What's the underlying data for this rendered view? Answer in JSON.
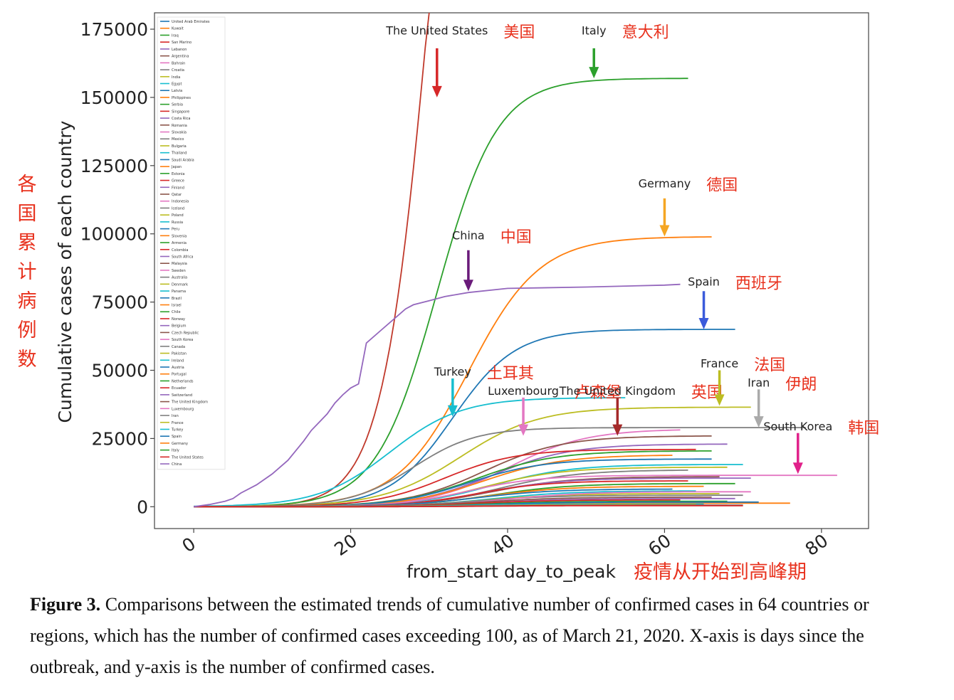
{
  "chart_data": {
    "type": "line",
    "title": "",
    "xlabel": "from_start day_to_peak",
    "xlabel_zh": "疫情从开始到高峰期",
    "ylabel": "Cumulative cases of each country",
    "ylabel_zh": "各国累计病例数",
    "xlim": [
      -5,
      86
    ],
    "ylim": [
      -8000,
      181000
    ],
    "x_ticks": [
      0,
      20,
      40,
      60,
      80
    ],
    "y_ticks": [
      0,
      25000,
      50000,
      75000,
      100000,
      125000,
      150000,
      175000
    ],
    "y_tick_labels": [
      "0",
      "25000",
      "50000",
      "75000",
      "100000",
      "125000",
      "150000",
      "175000"
    ],
    "legend_position": "top-left",
    "legend": [
      "United Arab Emirates",
      "Kuwait",
      "Iraq",
      "San Marino",
      "Lebanon",
      "Argentina",
      "Bahrain",
      "Croatia",
      "India",
      "Egypt",
      "Latvia",
      "Philippines",
      "Serbia",
      "Singapore",
      "Costa Rica",
      "Romania",
      "Slovakia",
      "Mexico",
      "Bulgaria",
      "Thailand",
      "Saudi Arabia",
      "Japan",
      "Estonia",
      "Greece",
      "Finland",
      "Qatar",
      "Indonesia",
      "Iceland",
      "Poland",
      "Russia",
      "Peru",
      "Slovenia",
      "Armenia",
      "Colombia",
      "South Africa",
      "Malaysia",
      "Sweden",
      "Australia",
      "Denmark",
      "Panama",
      "Brazil",
      "Israel",
      "Chile",
      "Norway",
      "Belgium",
      "Czech Republic",
      "South Korea",
      "Canada",
      "Pakistan",
      "Ireland",
      "Austria",
      "Portugal",
      "Netherlands",
      "Ecuador",
      "Switzerland",
      "The United Kingdom",
      "Luxembourg",
      "Iran",
      "France",
      "Turkey",
      "Spain",
      "Germany",
      "Italy",
      "The United States",
      "China"
    ],
    "color_cycle": [
      "#1f77b4",
      "#ff7f0e",
      "#2ca02c",
      "#d62728",
      "#9467bd",
      "#8c564b",
      "#e377c2",
      "#7f7f7f",
      "#bcbd22",
      "#17becf"
    ],
    "series": [
      {
        "name": "The United States",
        "color": "#c0392b",
        "type": "logistic",
        "L": 400000,
        "mid": 30.5,
        "k": 0.32,
        "x_end": 31
      },
      {
        "name": "Italy",
        "color": "#2ca02c",
        "type": "logistic",
        "L": 157000,
        "mid": 31,
        "k": 0.26,
        "x_end": 63
      },
      {
        "name": "Germany",
        "color": "#ff7f0e",
        "type": "logistic",
        "L": 99000,
        "mid": 35,
        "k": 0.22,
        "x_end": 66
      },
      {
        "name": "Spain",
        "color": "#1f77b4",
        "type": "logistic",
        "L": 65000,
        "mid": 33,
        "k": 0.25,
        "x_end": 69
      },
      {
        "name": "Turkey",
        "color": "#17becf",
        "type": "logistic",
        "L": 40000,
        "mid": 25,
        "k": 0.22,
        "x_end": 55
      },
      {
        "name": "Luxembourg",
        "color": "#bcbd22",
        "type": "logistic",
        "L": 36500,
        "mid": 34,
        "k": 0.2,
        "x_end": 71
      },
      {
        "name": "Iran",
        "color": "#7f7f7f",
        "type": "logistic",
        "L": 29000,
        "mid": 28,
        "k": 0.25,
        "x_end": 78
      },
      {
        "name": "The United Kingdom",
        "color": "#e377c2",
        "type": "logistic",
        "L": 28500,
        "mid": 40,
        "k": 0.2,
        "x_end": 62
      },
      {
        "name": "France",
        "color": "#8c564b",
        "type": "logistic",
        "L": 26000,
        "mid": 37,
        "k": 0.2,
        "x_end": 66
      },
      {
        "name": "Switzerland",
        "color": "#9467bd",
        "type": "logistic",
        "L": 23000,
        "mid": 38,
        "k": 0.2,
        "x_end": 68
      },
      {
        "name": "Ecuador",
        "color": "#d62728",
        "type": "logistic",
        "L": 21000,
        "mid": 32,
        "k": 0.22,
        "x_end": 64
      },
      {
        "name": "Netherlands",
        "color": "#2ca02c",
        "type": "logistic",
        "L": 20500,
        "mid": 36,
        "k": 0.2,
        "x_end": 66
      },
      {
        "name": "Portugal",
        "color": "#ff7f0e",
        "type": "logistic",
        "L": 19000,
        "mid": 37,
        "k": 0.2,
        "x_end": 61
      },
      {
        "name": "Austria",
        "color": "#1f77b4",
        "type": "logistic",
        "L": 17500,
        "mid": 35,
        "k": 0.21,
        "x_end": 66
      },
      {
        "name": "Ireland",
        "color": "#17becf",
        "type": "logistic",
        "L": 15500,
        "mid": 38,
        "k": 0.2,
        "x_end": 70
      },
      {
        "name": "Pakistan",
        "color": "#bcbd22",
        "type": "logistic",
        "L": 14500,
        "mid": 37,
        "k": 0.2,
        "x_end": 68
      },
      {
        "name": "Canada",
        "color": "#7f7f7f",
        "type": "logistic",
        "L": 13500,
        "mid": 39,
        "k": 0.2,
        "x_end": 63
      },
      {
        "name": "South Korea",
        "color": "#e377c2",
        "type": "logistic",
        "L": 11500,
        "mid": 35,
        "k": 0.22,
        "x_end": 82
      },
      {
        "name": "Czech Republic",
        "color": "#8c564b",
        "type": "logistic",
        "L": 11000,
        "mid": 38,
        "k": 0.2,
        "x_end": 67
      },
      {
        "name": "Belgium",
        "color": "#9467bd",
        "type": "logistic",
        "L": 10500,
        "mid": 37,
        "k": 0.2,
        "x_end": 71
      },
      {
        "name": "Norway",
        "color": "#d62728",
        "type": "logistic",
        "L": 9500,
        "mid": 36,
        "k": 0.22,
        "x_end": 63
      },
      {
        "name": "Chile",
        "color": "#2ca02c",
        "type": "logistic",
        "L": 8500,
        "mid": 38,
        "k": 0.2,
        "x_end": 69
      },
      {
        "name": "Israel",
        "color": "#ff7f0e",
        "type": "logistic",
        "L": 7500,
        "mid": 37,
        "k": 0.2,
        "x_end": 65
      },
      {
        "name": "Brazil",
        "color": "#1f77b4",
        "type": "logistic",
        "L": 6500,
        "mid": 36,
        "k": 0.2,
        "x_end": 61
      },
      {
        "name": "Panama",
        "color": "#17becf",
        "type": "logistic",
        "L": 5800,
        "mid": 38,
        "k": 0.2,
        "x_end": 64
      },
      {
        "name": "Denmark",
        "color": "#bcbd22",
        "type": "logistic",
        "L": 4800,
        "mid": 37,
        "k": 0.2,
        "x_end": 67
      },
      {
        "name": "Australia",
        "color": "#7f7f7f",
        "type": "logistic",
        "L": 4200,
        "mid": 36,
        "k": 0.2,
        "x_end": 70
      },
      {
        "name": "Sweden",
        "color": "#e377c2",
        "type": "logistic",
        "L": 5500,
        "mid": 40,
        "k": 0.2,
        "x_end": 71
      },
      {
        "name": "Malaysia",
        "color": "#8c564b",
        "type": "logistic",
        "L": 3500,
        "mid": 37,
        "k": 0.2,
        "x_end": 66
      },
      {
        "name": "South Africa",
        "color": "#9467bd",
        "type": "logistic",
        "L": 3000,
        "mid": 38,
        "k": 0.2,
        "x_end": 69
      },
      {
        "name": "Colombia",
        "color": "#d62728",
        "type": "logistic",
        "L": 2500,
        "mid": 36,
        "k": 0.2,
        "x_end": 62
      },
      {
        "name": "Armenia",
        "color": "#2ca02c",
        "type": "logistic",
        "L": 2000,
        "mid": 37,
        "k": 0.2,
        "x_end": 68
      },
      {
        "name": "Slovenia",
        "color": "#ff7f0e",
        "type": "logistic",
        "L": 1300,
        "mid": 35,
        "k": 0.2,
        "x_end": 76
      },
      {
        "name": "Peru",
        "color": "#1f77b4",
        "type": "logistic",
        "L": 1700,
        "mid": 38,
        "k": 0.2,
        "x_end": 72
      },
      {
        "name": "Russia",
        "color": "#17becf",
        "type": "logistic",
        "L": 1000,
        "mid": 36,
        "k": 0.2,
        "x_end": 65
      },
      {
        "name": "Poland",
        "color": "#bcbd22",
        "type": "logistic",
        "L": 800,
        "mid": 37,
        "k": 0.2,
        "x_end": 64
      },
      {
        "name": "Iceland",
        "color": "#7f7f7f",
        "type": "logistic",
        "L": 600,
        "mid": 36,
        "k": 0.2,
        "x_end": 70
      },
      {
        "name": "Qatar",
        "color": "#8c564b",
        "type": "logistic",
        "L": 500,
        "mid": 38,
        "k": 0.2,
        "x_end": 68
      },
      {
        "name": "Finland",
        "color": "#d62728",
        "type": "logistic",
        "L": 400,
        "mid": 37,
        "k": 0.2,
        "x_end": 70
      },
      {
        "name": "China",
        "color": "#9467bd",
        "type": "points",
        "x": [
          0,
          2,
          4,
          5,
          6,
          8,
          10,
          12,
          14,
          15,
          16,
          17,
          18,
          19,
          20,
          21,
          22,
          24,
          26,
          27,
          28,
          30,
          32,
          35,
          40,
          50,
          60,
          62
        ],
        "y": [
          0,
          800,
          2000,
          3000,
          5000,
          8000,
          12000,
          17000,
          24000,
          28000,
          31000,
          34000,
          38000,
          41000,
          43500,
          45000,
          60000,
          65000,
          70000,
          72500,
          74000,
          75500,
          77000,
          78500,
          80000,
          80500,
          81200,
          81500
        ]
      }
    ],
    "annotations": [
      {
        "label": "The United States",
        "label_zh": "美国",
        "arrow_color": "#d62728",
        "x": 31,
        "y_from": 168000,
        "y_to": 150000,
        "label_y": 173000
      },
      {
        "label": "Italy",
        "label_zh": "意大利",
        "arrow_color": "#2ca02c",
        "x": 51,
        "y_from": 168000,
        "y_to": 157000,
        "label_y": 173000
      },
      {
        "label": "Germany",
        "label_zh": "德国",
        "arrow_color": "#f5a623",
        "x": 60,
        "y_from": 113000,
        "y_to": 99000,
        "label_y": 117000
      },
      {
        "label": "China",
        "label_zh": "中国",
        "arrow_color": "#6a1b7a",
        "x": 35,
        "y_from": 94000,
        "y_to": 79000,
        "label_y": 98000
      },
      {
        "label": "Spain",
        "label_zh": "西班牙",
        "arrow_color": "#3b5bdb",
        "x": 65,
        "y_from": 79000,
        "y_to": 65000,
        "label_y": 81000
      },
      {
        "label": "Turkey",
        "label_zh": "土耳其",
        "arrow_color": "#17becf",
        "x": 33,
        "y_from": 47000,
        "y_to": 33000,
        "label_y": 48000
      },
      {
        "label": "Luxembourg",
        "label_zh": "卢森堡",
        "arrow_color": "#e377c2",
        "x": 42,
        "y_from": 40000,
        "y_to": 26000,
        "label_y": 41000
      },
      {
        "label": "The United Kingdom",
        "label_zh": "英国",
        "arrow_color": "#a52a2a",
        "x": 54,
        "y_from": 40000,
        "y_to": 26000,
        "label_y": 41000
      },
      {
        "label": "France",
        "label_zh": "法国",
        "arrow_color": "#bcbd22",
        "x": 67,
        "y_from": 50000,
        "y_to": 37000,
        "label_y": 51000
      },
      {
        "label": "Iran",
        "label_zh": "伊朗",
        "arrow_color": "#aaaaaa",
        "x": 72,
        "y_from": 43000,
        "y_to": 29000,
        "label_y": 44000
      },
      {
        "label": "South Korea",
        "label_zh": "韩国",
        "arrow_color": "#e0218a",
        "x": 77,
        "y_from": 27000,
        "y_to": 12000,
        "label_y": 28000
      }
    ]
  },
  "caption": {
    "label": "Figure 3.",
    "text": " Comparisons between the estimated trends of cumulative number of confirmed cases in 64 countries or regions, which has the number of confirmed cases exceeding 100, as of March 21, 2020. X-axis is days since the outbreak, and y-axis is the number of confirmed cases."
  }
}
